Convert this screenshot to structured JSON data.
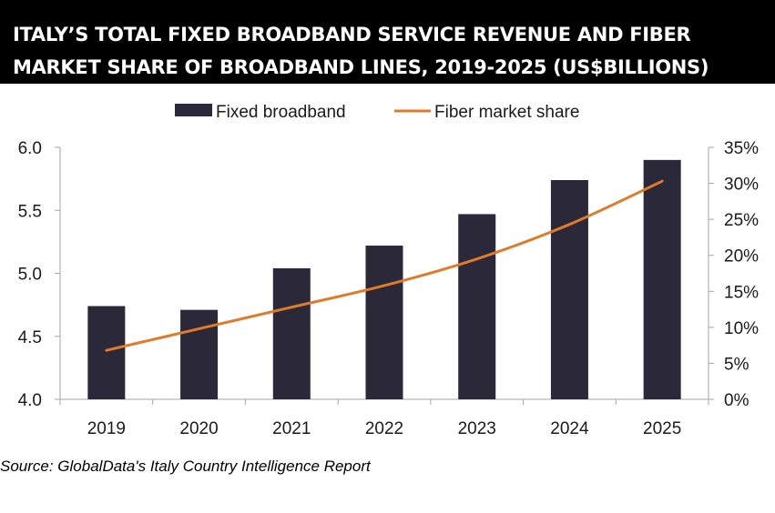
{
  "title": "ITALY’S TOTAL FIXED BROADBAND SERVICE REVENUE AND FIBER MARKET SHARE OF BROADBAND LINES, 2019-2025 (US$BILLIONS)",
  "source": "Source: GlobalData's Italy Country Intelligence Report",
  "colors": {
    "bar": "#2b2839",
    "line": "#e07b2a",
    "axis": "#a6a6a6",
    "title_bg": "#000000"
  },
  "chart_data": {
    "type": "bar",
    "categories": [
      "2019",
      "2020",
      "2021",
      "2022",
      "2023",
      "2024",
      "2025"
    ],
    "series": [
      {
        "name": "Fixed broadband",
        "type": "bar",
        "axis": "left",
        "values": [
          4.74,
          4.71,
          5.04,
          5.22,
          5.47,
          5.74,
          5.9
        ]
      },
      {
        "name": "Fiber market share",
        "type": "line",
        "axis": "right",
        "values": [
          6.8,
          9.8,
          12.8,
          15.8,
          19.5,
          24.3,
          30.3
        ]
      }
    ],
    "y_left": {
      "ylim": [
        4.0,
        6.0
      ],
      "ticks": [
        "4.0",
        "4.5",
        "5.0",
        "5.5",
        "6.0"
      ],
      "tick_values": [
        4.0,
        4.5,
        5.0,
        5.5,
        6.0
      ]
    },
    "y_right": {
      "ylim": [
        0,
        35
      ],
      "ticks": [
        "0%",
        "5%",
        "10%",
        "15%",
        "20%",
        "25%",
        "30%",
        "35%"
      ],
      "tick_values": [
        0,
        5,
        10,
        15,
        20,
        25,
        30,
        35
      ]
    },
    "legend_position": "top",
    "grid": false
  }
}
